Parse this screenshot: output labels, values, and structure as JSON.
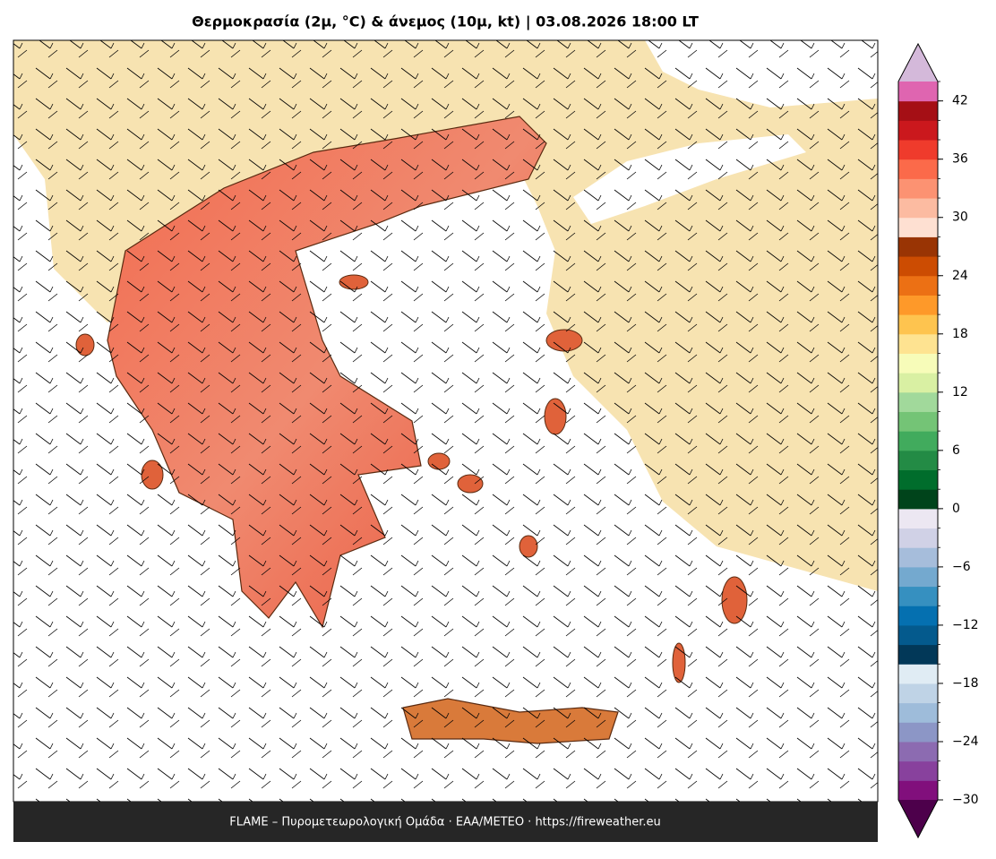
{
  "title": "Θερμοκρασία (2μ, °C) & άνεμος (10μ, kt)  |  03.08.2026 18:00 LT",
  "footer": "FLAME – Πυρομετεωρολογική Ομάδα · ΕΑΑ/METEO · https://fireweather.eu",
  "colorbar": {
    "vmin": -30,
    "vmax": 44,
    "step": 2,
    "under": "#4d004b",
    "over": "#d4b9da",
    "colors": [
      "#810f7c",
      "#88419d",
      "#8c6bb1",
      "#8c96c6",
      "#9ebcda",
      "#bfd3e6",
      "#e0ecf4",
      "#023858",
      "#045a8d",
      "#0570b0",
      "#3690c0",
      "#74a9cf",
      "#a6bddb",
      "#d0d1e6",
      "#ece7f2",
      "#00441b",
      "#006d2c",
      "#238b45",
      "#41ab5d",
      "#74c476",
      "#a1d99b",
      "#d9f0a3",
      "#f7fcb9",
      "#fee391",
      "#fec44f",
      "#fe9929",
      "#ec7014",
      "#cc4c02",
      "#993404",
      "#fee0d2",
      "#fcbba1",
      "#fc9272",
      "#fb6a4a",
      "#ef3b2c",
      "#cb181d",
      "#a50f15",
      "#df65b0"
    ],
    "ticks": [
      {
        "value": -30,
        "label": "−30"
      },
      {
        "value": -24,
        "label": "−24"
      },
      {
        "value": -18,
        "label": "−18"
      },
      {
        "value": -12,
        "label": "−12"
      },
      {
        "value": -6,
        "label": "−6"
      },
      0,
      6,
      12,
      18,
      24,
      30,
      36,
      42
    ]
  }
}
